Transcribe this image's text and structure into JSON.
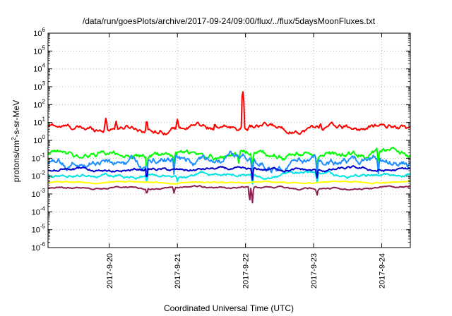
{
  "chart_data": {
    "type": "line",
    "title": "/data/run/goesPlots/archive/2017-09-24/09:00/flux/../flux/5daysMoonFluxes.txt",
    "xlabel": "Coordinated Universal Time (UTC)",
    "ylabel": "protons/cm²-s-sr-MeV",
    "ylabel_base": "protons/cm",
    "ylabel_sup": "2",
    "ylabel_rest": "-s-sr-MeV",
    "yscale": "log",
    "ylim_exp": [
      -6,
      6
    ],
    "y_ticks": [
      {
        "base": "10",
        "exp": "-6"
      },
      {
        "base": "10",
        "exp": "-5"
      },
      {
        "base": "10",
        "exp": "-4"
      },
      {
        "base": "10",
        "exp": "-3"
      },
      {
        "base": "10",
        "exp": "-2"
      },
      {
        "base": "10",
        "exp": "-1"
      },
      {
        "base": "10",
        "exp": "0"
      },
      {
        "base": "10",
        "exp": "1"
      },
      {
        "base": "10",
        "exp": "2"
      },
      {
        "base": "10",
        "exp": "3"
      },
      {
        "base": "10",
        "exp": "4"
      },
      {
        "base": "10",
        "exp": "5"
      },
      {
        "base": "10",
        "exp": "6"
      }
    ],
    "xlim_days": [
      19.1,
      24.42
    ],
    "x_ticks": [
      {
        "label": "2017-9-20",
        "day": 20
      },
      {
        "label": "2017-9-21",
        "day": 21
      },
      {
        "label": "2017-9-22",
        "day": 22
      },
      {
        "label": "2017-9-23",
        "day": 23
      },
      {
        "label": "2017-9-24",
        "day": 24
      }
    ],
    "grid": true,
    "series": [
      {
        "color": "#ff0000",
        "level": 5.0,
        "noise": 0.18,
        "spikes": [
          [
            19.95,
            18
          ],
          [
            20.1,
            12
          ],
          [
            20.55,
            14
          ],
          [
            21.0,
            15
          ],
          [
            21.3,
            11
          ],
          [
            21.55,
            9
          ],
          [
            21.96,
            600
          ],
          [
            22.1,
            3
          ],
          [
            23.1,
            9
          ],
          [
            23.9,
            8
          ]
        ]
      },
      {
        "color": "#00ff00",
        "level": 0.15,
        "noise": 0.22,
        "dips": [
          [
            20.55,
            0.02
          ],
          [
            20.95,
            0.03
          ],
          [
            21.9,
            0.05
          ],
          [
            22.1,
            0.02
          ],
          [
            23.05,
            0.03
          ],
          [
            23.95,
            0.03
          ]
        ]
      },
      {
        "color": "#1e90ff",
        "level": 0.06,
        "noise": 0.28,
        "dips": [
          [
            20.55,
            0.01
          ],
          [
            20.95,
            0.012
          ],
          [
            22.1,
            0.006
          ],
          [
            23.05,
            0.01
          ],
          [
            23.95,
            0.012
          ]
        ]
      },
      {
        "color": "#00e5e5",
        "level": 0.012,
        "noise": 0.12,
        "dips": [
          [
            20.55,
            0.004
          ],
          [
            21.0,
            0.005
          ],
          [
            22.1,
            0.003
          ],
          [
            23.05,
            0.004
          ]
        ]
      },
      {
        "color": "#0000cd",
        "level": 0.022,
        "noise": 0.1,
        "dips": [
          [
            20.55,
            0.006
          ],
          [
            22.1,
            0.005
          ],
          [
            23.05,
            0.007
          ]
        ]
      },
      {
        "color": "#ffff00",
        "level": 0.0045,
        "noise": 0.04,
        "dips": []
      },
      {
        "color": "#8b2252",
        "level": 0.0021,
        "noise": 0.06,
        "dips": [
          [
            20.55,
            0.0009
          ],
          [
            20.95,
            0.0011
          ],
          [
            22.06,
            0.0003
          ],
          [
            22.1,
            0.00025
          ],
          [
            23.05,
            0.0008
          ]
        ]
      }
    ]
  }
}
